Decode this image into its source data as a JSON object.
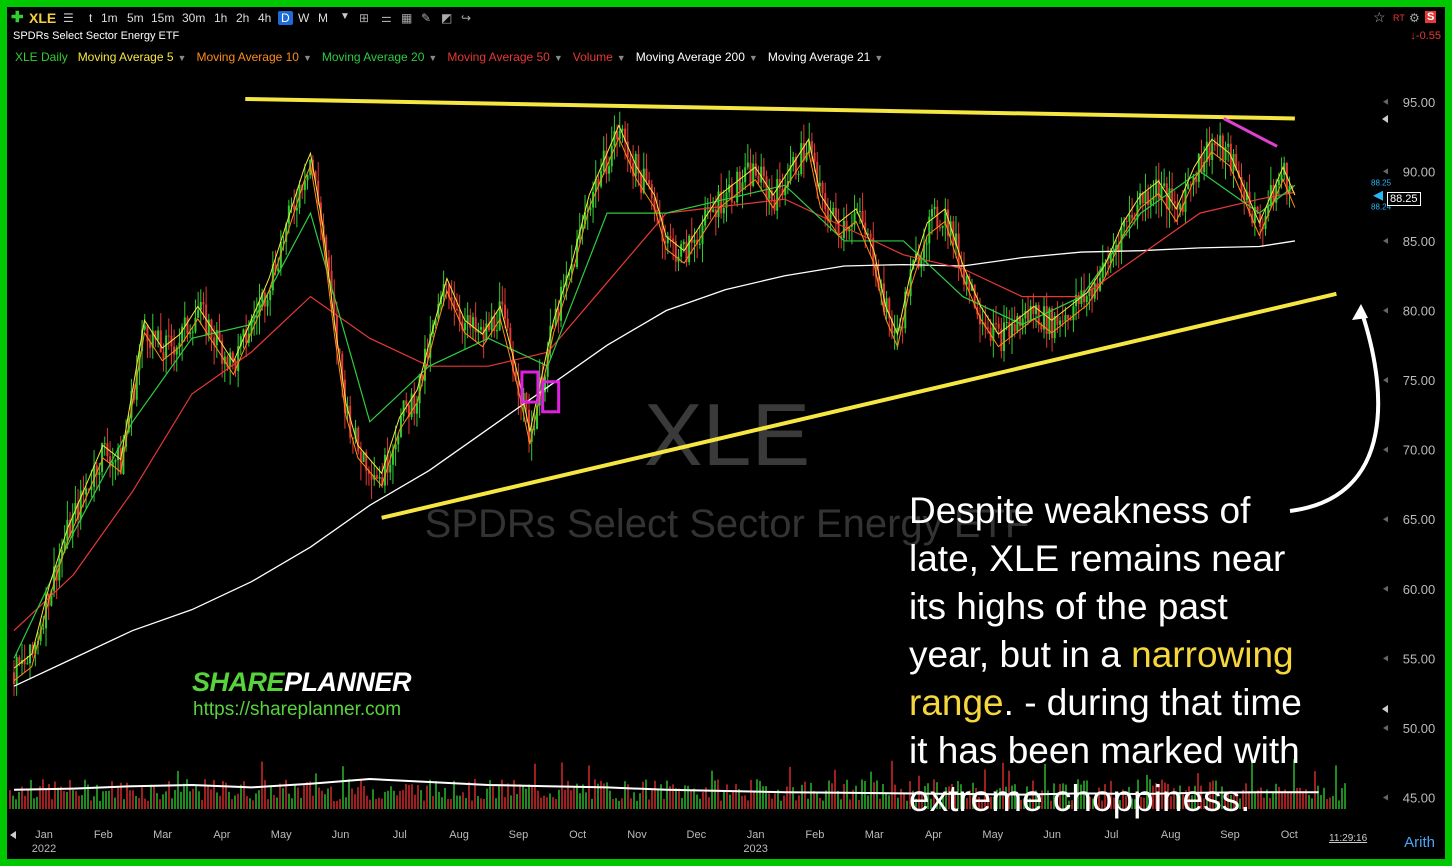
{
  "toolbar": {
    "plus_icon": "plus-icon",
    "ticker": "XLE",
    "timeframes": [
      "t",
      "1m",
      "5m",
      "15m",
      "30m",
      "1h",
      "2h",
      "4h",
      "D",
      "W",
      "M"
    ],
    "active_timeframe": "D"
  },
  "header": {
    "subtitle": "SPDRs Select Sector Energy ETF",
    "change": "-0.55",
    "rt_label": "RT"
  },
  "indicators": [
    {
      "label": "XLE Daily",
      "color": "#32cd32"
    },
    {
      "label": "Moving Average 5",
      "color": "#f5e642"
    },
    {
      "label": "Moving Average 10",
      "color": "#ff8c1a"
    },
    {
      "label": "Moving Average 20",
      "color": "#2ecc40"
    },
    {
      "label": "Moving Average 50",
      "color": "#e53935"
    },
    {
      "label": "Volume",
      "color": "#e53935"
    },
    {
      "label": "Moving Average 200",
      "color": "#ffffff"
    },
    {
      "label": "Moving Average 21",
      "color": "#ffffff"
    }
  ],
  "watermark": {
    "ticker": "XLE",
    "name": "SPDRs Select Sector Energy ETF"
  },
  "annotation": {
    "line1": "Despite weakness of",
    "line2": "late, XLE remains near",
    "line3": "its highs of the past",
    "line4a": "year, but in a ",
    "line4b": "narrowing",
    "line5a": "range",
    "line5b": ". - during that time",
    "line6": "it has been marked with",
    "line7": "extreme choppiness."
  },
  "branding": {
    "logo_part1": "SHARE",
    "logo_part2": "PLANNER",
    "url": "https://shareplanner.com"
  },
  "footer": {
    "time": "11:29:16",
    "scale_mode": "Arith"
  },
  "last_price": {
    "value": "88.25",
    "upper": "88.25",
    "lower": "88.24"
  },
  "chart_data": {
    "type": "line",
    "title": "XLE",
    "y_ticks": [
      45,
      50,
      55,
      60,
      65,
      70,
      75,
      80,
      85,
      90,
      95
    ],
    "ylim": [
      43.6,
      97.5
    ],
    "x_months": [
      {
        "label": "Jan",
        "year": "2022",
        "i": 0
      },
      {
        "label": "Feb",
        "i": 1
      },
      {
        "label": "Mar",
        "i": 2
      },
      {
        "label": "Apr",
        "i": 3
      },
      {
        "label": "May",
        "i": 4
      },
      {
        "label": "Jun",
        "i": 5
      },
      {
        "label": "Jul",
        "i": 6
      },
      {
        "label": "Aug",
        "i": 7
      },
      {
        "label": "Sep",
        "i": 8
      },
      {
        "label": "Oct",
        "i": 9
      },
      {
        "label": "Nov",
        "i": 10
      },
      {
        "label": "Dec",
        "i": 11
      },
      {
        "label": "Jan",
        "year": "2023",
        "i": 12
      },
      {
        "label": "Feb",
        "i": 13
      },
      {
        "label": "Mar",
        "i": 14
      },
      {
        "label": "Apr",
        "i": 15
      },
      {
        "label": "May",
        "i": 16
      },
      {
        "label": "Jun",
        "i": 17
      },
      {
        "label": "Jul",
        "i": 18
      },
      {
        "label": "Aug",
        "i": 19
      },
      {
        "label": "Sep",
        "i": 20
      },
      {
        "label": "Oct",
        "i": 21
      }
    ],
    "price_path": [
      [
        0,
        54
      ],
      [
        0.3,
        55
      ],
      [
        0.6,
        60
      ],
      [
        0.9,
        64
      ],
      [
        1.2,
        67
      ],
      [
        1.5,
        70
      ],
      [
        1.8,
        69
      ],
      [
        2.0,
        74
      ],
      [
        2.2,
        79
      ],
      [
        2.5,
        77
      ],
      [
        2.8,
        78
      ],
      [
        3.1,
        80
      ],
      [
        3.4,
        78
      ],
      [
        3.7,
        76
      ],
      [
        4.0,
        79
      ],
      [
        4.3,
        82
      ],
      [
        4.6,
        86
      ],
      [
        4.9,
        90
      ],
      [
        5.0,
        91
      ],
      [
        5.2,
        86
      ],
      [
        5.4,
        79
      ],
      [
        5.6,
        73
      ],
      [
        5.8,
        70
      ],
      [
        6.0,
        69
      ],
      [
        6.2,
        68
      ],
      [
        6.5,
        72
      ],
      [
        6.8,
        74
      ],
      [
        7.1,
        79
      ],
      [
        7.3,
        82
      ],
      [
        7.6,
        79
      ],
      [
        7.9,
        78
      ],
      [
        8.2,
        80
      ],
      [
        8.5,
        75
      ],
      [
        8.7,
        71
      ],
      [
        8.9,
        75
      ],
      [
        9.1,
        79
      ],
      [
        9.4,
        83
      ],
      [
        9.7,
        88
      ],
      [
        10.0,
        91
      ],
      [
        10.2,
        93
      ],
      [
        10.5,
        90
      ],
      [
        10.8,
        88
      ],
      [
        11.0,
        85
      ],
      [
        11.3,
        84
      ],
      [
        11.6,
        86
      ],
      [
        11.9,
        88
      ],
      [
        12.2,
        89
      ],
      [
        12.5,
        90
      ],
      [
        12.8,
        88
      ],
      [
        13.1,
        90
      ],
      [
        13.4,
        92
      ],
      [
        13.6,
        88
      ],
      [
        13.9,
        86
      ],
      [
        14.2,
        87
      ],
      [
        14.5,
        84
      ],
      [
        14.7,
        80
      ],
      [
        14.9,
        78
      ],
      [
        15.1,
        82
      ],
      [
        15.4,
        86
      ],
      [
        15.7,
        87
      ],
      [
        16.0,
        83
      ],
      [
        16.3,
        80
      ],
      [
        16.6,
        78
      ],
      [
        16.9,
        79
      ],
      [
        17.2,
        80
      ],
      [
        17.5,
        79
      ],
      [
        17.8,
        80
      ],
      [
        18.1,
        81
      ],
      [
        18.4,
        83
      ],
      [
        18.7,
        86
      ],
      [
        19.0,
        88
      ],
      [
        19.3,
        89
      ],
      [
        19.6,
        87
      ],
      [
        19.9,
        90
      ],
      [
        20.2,
        92
      ],
      [
        20.5,
        91
      ],
      [
        20.8,
        88
      ],
      [
        21.0,
        86
      ],
      [
        21.2,
        88
      ],
      [
        21.4,
        90
      ],
      [
        21.6,
        88
      ]
    ],
    "sma200_path": [
      [
        0,
        53
      ],
      [
        1,
        55
      ],
      [
        2,
        57
      ],
      [
        3,
        58.5
      ],
      [
        4,
        60.5
      ],
      [
        5,
        63
      ],
      [
        6,
        66
      ],
      [
        7,
        68.5
      ],
      [
        8,
        71.5
      ],
      [
        9,
        74.5
      ],
      [
        10,
        77.5
      ],
      [
        11,
        80
      ],
      [
        12,
        81.5
      ],
      [
        13,
        82.5
      ],
      [
        14,
        83.2
      ],
      [
        15,
        83.3
      ],
      [
        16,
        83.2
      ],
      [
        17,
        83.8
      ],
      [
        18,
        84.2
      ],
      [
        19,
        84.3
      ],
      [
        20,
        84.5
      ],
      [
        21,
        84.6
      ],
      [
        21.6,
        85
      ]
    ],
    "sma50_path": [
      [
        0,
        57
      ],
      [
        1,
        61
      ],
      [
        2,
        67
      ],
      [
        3,
        74
      ],
      [
        4,
        77
      ],
      [
        5,
        81
      ],
      [
        6,
        78
      ],
      [
        7,
        76
      ],
      [
        8,
        76
      ],
      [
        9,
        77
      ],
      [
        10,
        82
      ],
      [
        11,
        87
      ],
      [
        12,
        87.5
      ],
      [
        13,
        88
      ],
      [
        14,
        86
      ],
      [
        15,
        84
      ],
      [
        16,
        83
      ],
      [
        17,
        81
      ],
      [
        18,
        81
      ],
      [
        19,
        84
      ],
      [
        20,
        87
      ],
      [
        21,
        88
      ],
      [
        21.6,
        88.5
      ]
    ],
    "sma20_path": [
      [
        0,
        55
      ],
      [
        1,
        64
      ],
      [
        2,
        72
      ],
      [
        3,
        78
      ],
      [
        4,
        79
      ],
      [
        5,
        87
      ],
      [
        6,
        72
      ],
      [
        7,
        76
      ],
      [
        8,
        78
      ],
      [
        9,
        76
      ],
      [
        10,
        87
      ],
      [
        11,
        87
      ],
      [
        12,
        88
      ],
      [
        13,
        89
      ],
      [
        14,
        85
      ],
      [
        15,
        85
      ],
      [
        16,
        81
      ],
      [
        17,
        79
      ],
      [
        18,
        81
      ],
      [
        19,
        87
      ],
      [
        20,
        90
      ],
      [
        21,
        87
      ],
      [
        21.6,
        89
      ]
    ],
    "trendlines": [
      {
        "name": "resistance",
        "color": "#f5e642",
        "from": [
          3.9,
          95.2
        ],
        "to": [
          21.6,
          93.8
        ]
      },
      {
        "name": "support",
        "color": "#f5e642",
        "from": [
          6.2,
          65.1
        ],
        "to": [
          22.3,
          81.2
        ]
      },
      {
        "name": "recent-downtrend",
        "color": "#e040d0",
        "from": [
          20.4,
          93.8
        ],
        "to": [
          21.3,
          91.8
        ]
      }
    ],
    "markers": [
      {
        "name": "marker-1",
        "color": "#e020e0",
        "x": 8.7,
        "y": 74.5
      },
      {
        "name": "marker-2",
        "color": "#e020e0",
        "x": 9.05,
        "y": 73.8
      }
    ],
    "volume_avg": [
      0.32,
      0.34,
      0.38,
      0.4,
      0.36,
      0.42,
      0.5,
      0.45,
      0.4,
      0.38,
      0.36,
      0.32,
      0.3,
      0.28,
      0.27,
      0.26,
      0.25,
      0.24,
      0.26,
      0.25,
      0.27,
      0.28,
      0.28
    ],
    "colors": {
      "up": "#32cd32",
      "down": "#e53935",
      "sma5": "#f5e642",
      "sma10": "#ff8c1a",
      "sma20": "#2ecc40",
      "sma50": "#e53935",
      "sma200": "#ffffff",
      "last_price_marker": "#29b6f6"
    }
  }
}
